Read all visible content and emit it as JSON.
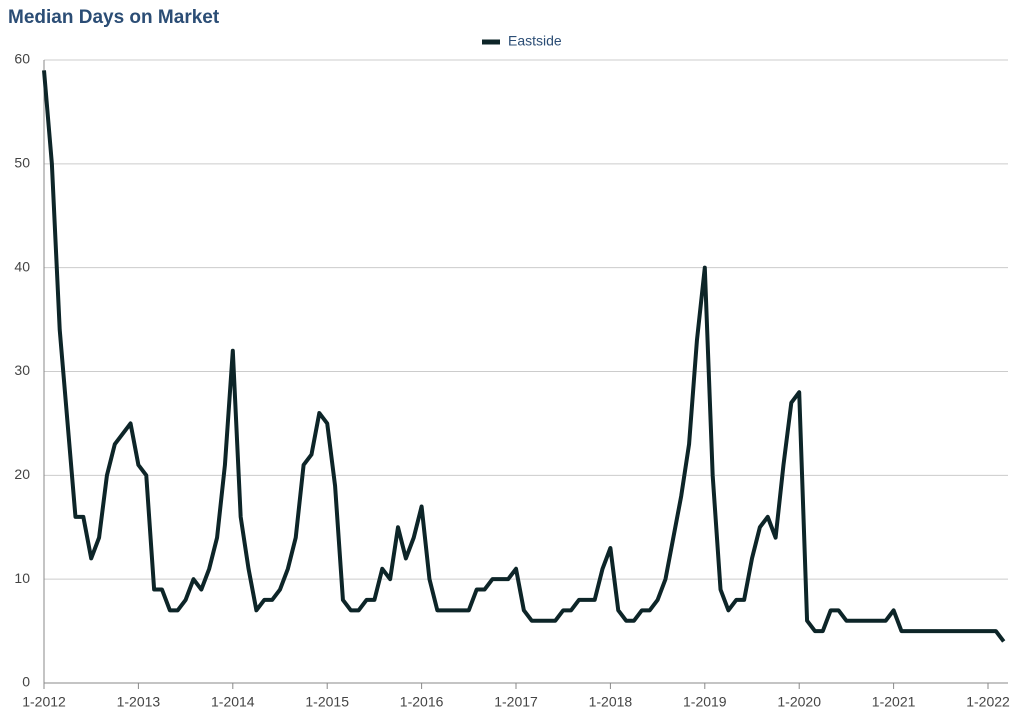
{
  "chart_data": {
    "type": "line",
    "title": "Median Days on Market",
    "categories": [
      "1-2012",
      null,
      null,
      null,
      null,
      null,
      null,
      null,
      null,
      null,
      null,
      null,
      "1-2013",
      null,
      null,
      null,
      null,
      null,
      null,
      null,
      null,
      null,
      null,
      null,
      "1-2014",
      null,
      null,
      null,
      null,
      null,
      null,
      null,
      null,
      null,
      null,
      null,
      "1-2015",
      null,
      null,
      null,
      null,
      null,
      null,
      null,
      null,
      null,
      null,
      null,
      "1-2016",
      null,
      null,
      null,
      null,
      null,
      null,
      null,
      null,
      null,
      null,
      null,
      "1-2017",
      null,
      null,
      null,
      null,
      null,
      null,
      null,
      null,
      null,
      null,
      null,
      "1-2018",
      null,
      null,
      null,
      null,
      null,
      null,
      null,
      null,
      null,
      null,
      null,
      "1-2019",
      null,
      null,
      null,
      null,
      null,
      null,
      null,
      null,
      null,
      null,
      null,
      "1-2020",
      null,
      null,
      null,
      null,
      null,
      null,
      null,
      null,
      null,
      null,
      null,
      "1-2021",
      null,
      null,
      null,
      null,
      null,
      null,
      null,
      null,
      null,
      null,
      null,
      "1-2022",
      null,
      null
    ],
    "series": [
      {
        "name": "Eastside",
        "color": "#0d2528",
        "values": [
          59,
          50,
          34,
          25,
          16,
          16,
          12,
          14,
          20,
          23,
          24,
          25,
          21,
          20,
          9,
          9,
          7,
          7,
          8,
          10,
          9,
          11,
          14,
          21,
          32,
          16,
          11,
          7,
          8,
          8,
          9,
          11,
          14,
          21,
          22,
          26,
          25,
          19,
          8,
          7,
          7,
          8,
          8,
          11,
          10,
          15,
          12,
          14,
          17,
          10,
          7,
          7,
          7,
          7,
          7,
          9,
          9,
          10,
          10,
          10,
          11,
          7,
          6,
          6,
          6,
          6,
          7,
          7,
          8,
          8,
          8,
          11,
          13,
          7,
          6,
          6,
          7,
          7,
          8,
          10,
          14,
          18,
          23,
          33,
          40,
          20,
          9,
          7,
          8,
          8,
          12,
          15,
          16,
          14,
          21,
          27,
          28,
          6,
          5,
          5,
          7,
          7,
          6,
          6,
          6,
          6,
          6,
          6,
          7,
          5,
          5,
          5,
          5,
          5,
          5,
          5,
          5,
          5,
          5,
          5,
          5,
          5,
          4
        ]
      }
    ],
    "ylim": [
      0,
      60
    ],
    "yticks": [
      0,
      10,
      20,
      30,
      40,
      50,
      60
    ],
    "grid": true,
    "legend": "top"
  }
}
